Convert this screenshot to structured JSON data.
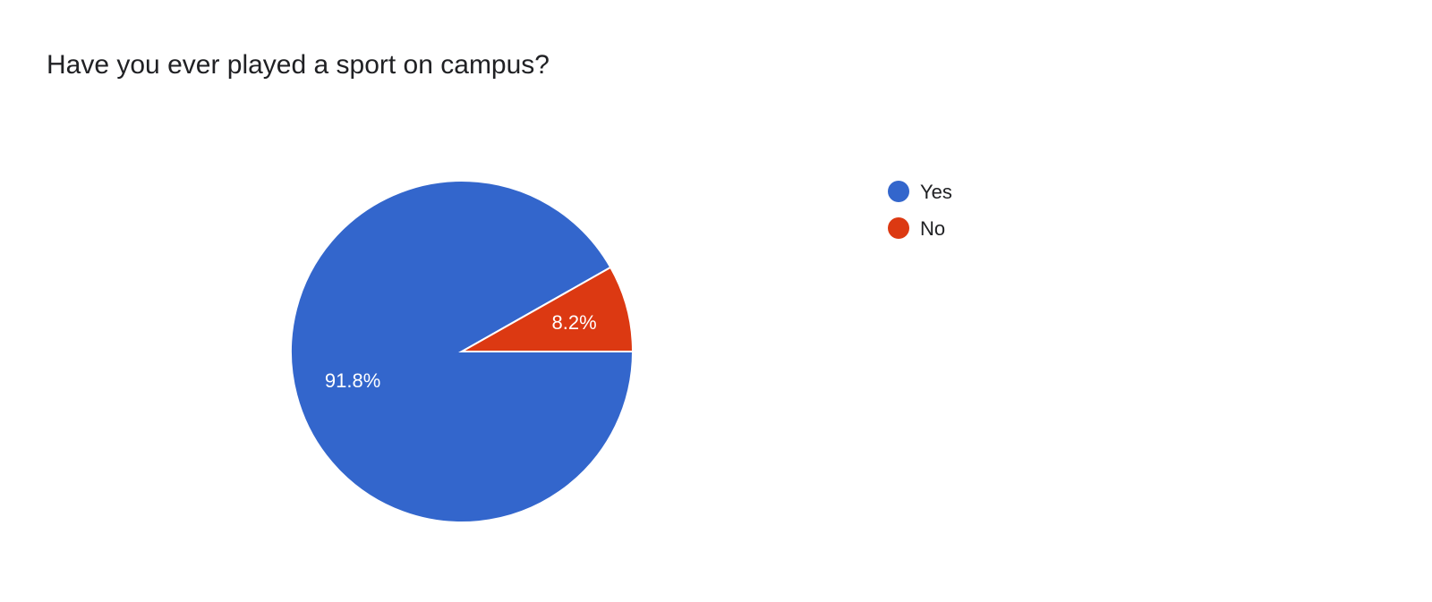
{
  "chart_data": {
    "type": "pie",
    "title": "Have you ever played a sport on campus?",
    "start_angle_deg": 90,
    "direction": "clockwise",
    "legend_position": "right",
    "slices": [
      {
        "label": "Yes",
        "value": 91.8,
        "display": "91.8%",
        "color": "#3366cc"
      },
      {
        "label": "No",
        "value": 8.2,
        "display": "8.2%",
        "color": "#dc3912"
      }
    ]
  }
}
